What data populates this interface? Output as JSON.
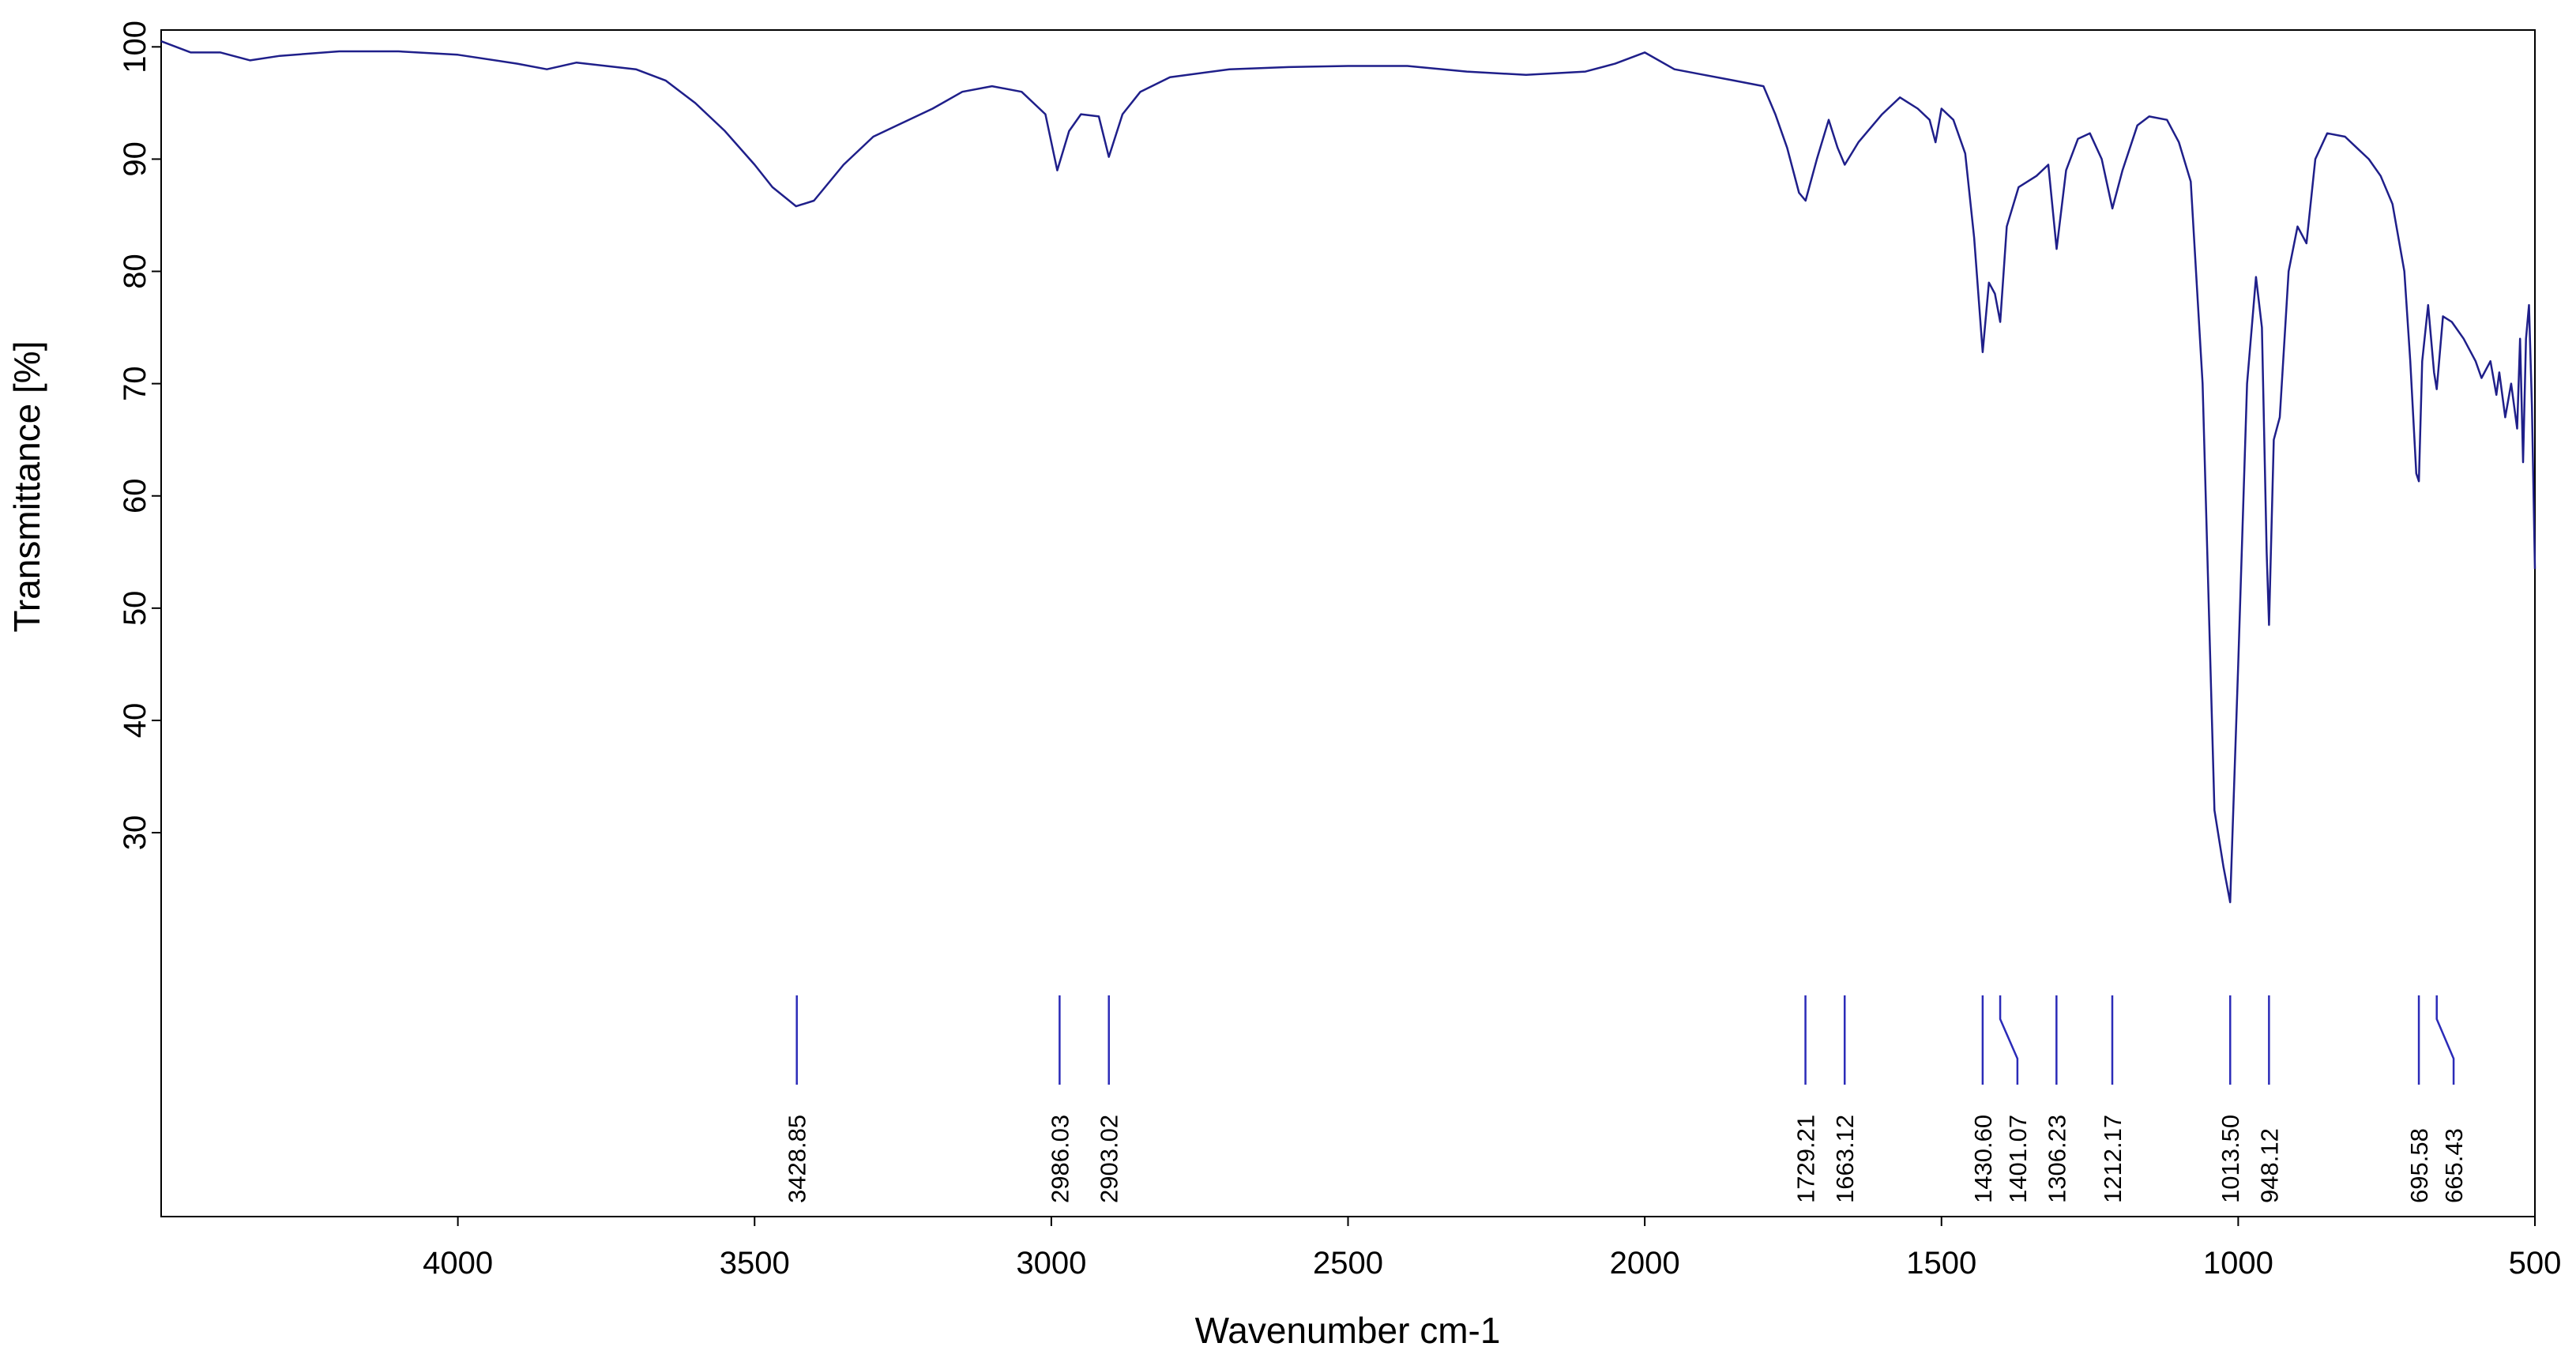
{
  "chart_data": {
    "type": "line",
    "xlabel": "Wavenumber cm-1",
    "ylabel": "Transmittance [%]",
    "xlim": [
      4500,
      500
    ],
    "ylim": [
      -4.2,
      101.5
    ],
    "xticks": [
      4000,
      3500,
      3000,
      2500,
      2000,
      1500,
      1000,
      500
    ],
    "yticks": [
      30,
      40,
      50,
      60,
      70,
      80,
      90,
      100
    ],
    "color": "#1f1f8a",
    "x": [
      4500,
      4450,
      4400,
      4350,
      4300,
      4200,
      4100,
      4000,
      3900,
      3850,
      3800,
      3750,
      3700,
      3650,
      3600,
      3550,
      3500,
      3470,
      3430,
      3400,
      3350,
      3300,
      3200,
      3150,
      3100,
      3050,
      3010,
      2990,
      2970,
      2950,
      2920,
      2903,
      2880,
      2850,
      2800,
      2700,
      2600,
      2500,
      2400,
      2300,
      2200,
      2100,
      2050,
      2000,
      1950,
      1900,
      1850,
      1800,
      1780,
      1760,
      1740,
      1729,
      1710,
      1690,
      1675,
      1663,
      1640,
      1600,
      1570,
      1540,
      1520,
      1510,
      1500,
      1480,
      1460,
      1445,
      1430.6,
      1420,
      1410,
      1401,
      1390,
      1370,
      1340,
      1320,
      1306,
      1290,
      1270,
      1250,
      1230,
      1212,
      1195,
      1170,
      1150,
      1120,
      1100,
      1080,
      1060,
      1040,
      1025,
      1013.5,
      1000,
      985,
      970,
      960,
      952,
      948,
      940,
      930,
      915,
      900,
      885,
      870,
      850,
      820,
      800,
      780,
      760,
      740,
      720,
      710,
      700,
      695.6,
      690,
      680,
      670,
      665.4,
      655,
      640,
      620,
      600,
      590,
      575,
      565,
      560,
      550,
      540,
      530,
      525,
      520,
      515,
      510,
      505,
      500
    ],
    "values": [
      100.5,
      99.5,
      99.5,
      98.8,
      99.2,
      99.6,
      99.6,
      99.3,
      98.5,
      98.0,
      98.6,
      98.3,
      98.0,
      97.0,
      95.0,
      92.5,
      89.5,
      87.5,
      85.8,
      86.3,
      89.5,
      92.0,
      94.5,
      96.0,
      96.5,
      96.0,
      94.0,
      89.0,
      92.5,
      94.0,
      93.8,
      90.2,
      94.0,
      96.0,
      97.3,
      98.0,
      98.2,
      98.3,
      98.3,
      97.8,
      97.5,
      97.8,
      98.5,
      99.5,
      98.0,
      97.5,
      97.0,
      96.5,
      94.0,
      91.0,
      87.0,
      86.3,
      90.0,
      93.5,
      91.0,
      89.5,
      91.5,
      94.0,
      95.5,
      94.5,
      93.5,
      91.5,
      94.5,
      93.5,
      90.5,
      83.0,
      72.8,
      79,
      78,
      75.5,
      84,
      87.5,
      88.5,
      89.5,
      82.0,
      89,
      91.8,
      92.3,
      90.0,
      85.6,
      89.0,
      93,
      93.8,
      93.5,
      91.5,
      88,
      70,
      32,
      27,
      23.8,
      45,
      70,
      79.5,
      75,
      55,
      48.5,
      65,
      67,
      80,
      84,
      82.5,
      90,
      92.3,
      92.0,
      91.0,
      90.0,
      88.5,
      86.0,
      80,
      72,
      62,
      61.3,
      72,
      77,
      71,
      69.5,
      76,
      75.5,
      74,
      72,
      70.5,
      72,
      69,
      71,
      67,
      70,
      66,
      74,
      63,
      74,
      77,
      68,
      53.5
    ],
    "peaks": [
      3428.85,
      2986.03,
      2903.02,
      1729.21,
      1663.12,
      {
        "value": 1430.6,
        "label": "1430.60"
      },
      1401.07,
      1306.23,
      1212.17,
      {
        "value": 1013.5,
        "label": "1013.50"
      },
      948.12,
      695.58,
      665.43
    ],
    "peak_color": "#2b2bb8"
  }
}
